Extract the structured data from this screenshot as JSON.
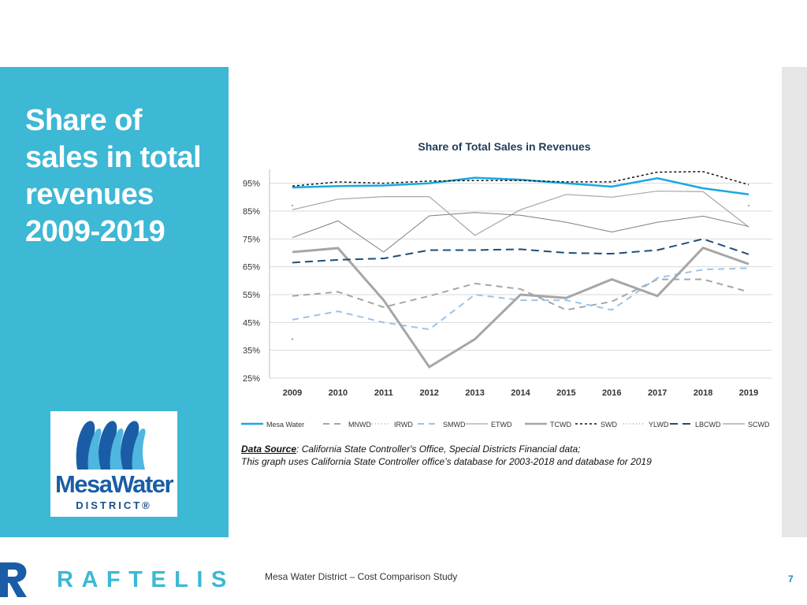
{
  "slide": {
    "title_lines": [
      "Share of",
      "sales in total",
      "revenues",
      "2009-2019"
    ],
    "colors": {
      "panel": "#3db8d5",
      "brand": "#3db8d5",
      "logo_blue": "#1a5da6"
    }
  },
  "logo": {
    "word": "MesaWater",
    "district": "DISTRICT®",
    "icon": "mesa-water-waves-icon"
  },
  "source": {
    "label": "Data Source",
    "line1": ": California State Controller's Office, Special Districts Financial  data;",
    "line2": "This graph uses California State Controller office’s database for 2003-2018 and database for 2019"
  },
  "footer": {
    "brand": "RAFTELIS",
    "brand_icon": "raftelis-r-icon",
    "study": "Mesa Water District – Cost Comparison Study",
    "page_number": "7"
  },
  "chart_data": {
    "type": "line",
    "title": "Share of Total Sales in Revenues",
    "xlabel": "",
    "ylabel": "",
    "x": [
      "2009",
      "2010",
      "2011",
      "2012",
      "2013",
      "2014",
      "2015",
      "2016",
      "2017",
      "2018",
      "2019"
    ],
    "ylim": [
      25,
      100
    ],
    "yticks": [
      25,
      35,
      45,
      55,
      65,
      75,
      85,
      95
    ],
    "ytick_labels": [
      "25%",
      "35%",
      "45%",
      "55%",
      "65%",
      "75%",
      "85%",
      "95%"
    ],
    "grid": true,
    "legend": "bottom",
    "series": [
      {
        "name": "Mesa Water",
        "color": "#1aa8e0",
        "dash": "",
        "width": 2.5,
        "values": [
          93.5,
          94.0,
          94.2,
          95.0,
          97.0,
          96.3,
          95.0,
          93.8,
          96.8,
          93.2,
          91.0
        ]
      },
      {
        "name": "MNWD",
        "color": "#a6a6a6",
        "dash": "8,6",
        "width": 2,
        "values": [
          54.5,
          56.0,
          50.5,
          54.5,
          59.0,
          57.0,
          49.5,
          52.5,
          60.5,
          60.5,
          56.0
        ]
      },
      {
        "name": "IRWD",
        "color": "#8c8c8c",
        "dash": "1,3",
        "width": 1,
        "values": [
          87.0,
          null,
          null,
          null,
          null,
          null,
          null,
          null,
          null,
          null,
          87.0
        ]
      },
      {
        "name": "SMWD",
        "color": "#9dc3e6",
        "dash": "8,6",
        "width": 2,
        "values": [
          46.0,
          49.0,
          45.0,
          42.5,
          55.0,
          53.0,
          53.0,
          49.5,
          61.0,
          64.0,
          64.5
        ]
      },
      {
        "name": "ETWD",
        "color": "#a6a6a6",
        "dash": "",
        "width": 1.2,
        "values": [
          85.5,
          89.3,
          90.2,
          90.2,
          76.3,
          85.5,
          91.0,
          90.0,
          92.2,
          92.0,
          79.3
        ]
      },
      {
        "name": "TCWD",
        "color": "#a6a6a6",
        "dash": "",
        "width": 3,
        "values": [
          70.3,
          71.7,
          53.0,
          29.0,
          39.0,
          55.0,
          53.8,
          60.5,
          54.5,
          71.8,
          66.0
        ]
      },
      {
        "name": "SWD",
        "color": "#111111",
        "dash": "3,3",
        "width": 1.5,
        "values": [
          94.0,
          95.5,
          95.0,
          95.8,
          96.0,
          96.0,
          95.5,
          95.5,
          99.0,
          99.2,
          94.5
        ]
      },
      {
        "name": "YLWD",
        "color": "#7f7f7f",
        "dash": "1,3",
        "width": 1,
        "values": [
          39.0,
          null,
          null,
          null,
          null,
          null,
          null,
          null,
          null,
          null,
          null
        ]
      },
      {
        "name": "LBCWD",
        "color": "#1f4e79",
        "dash": "10,6",
        "width": 2,
        "values": [
          66.5,
          67.5,
          68.0,
          71.0,
          71.0,
          71.3,
          70.0,
          69.7,
          71.0,
          75.0,
          69.5
        ]
      },
      {
        "name": "SCWD",
        "color": "#7f7f7f",
        "dash": "",
        "width": 1,
        "values": [
          75.5,
          81.5,
          70.3,
          83.3,
          84.5,
          83.5,
          81.0,
          77.5,
          81.0,
          83.2,
          79.5
        ]
      }
    ]
  }
}
